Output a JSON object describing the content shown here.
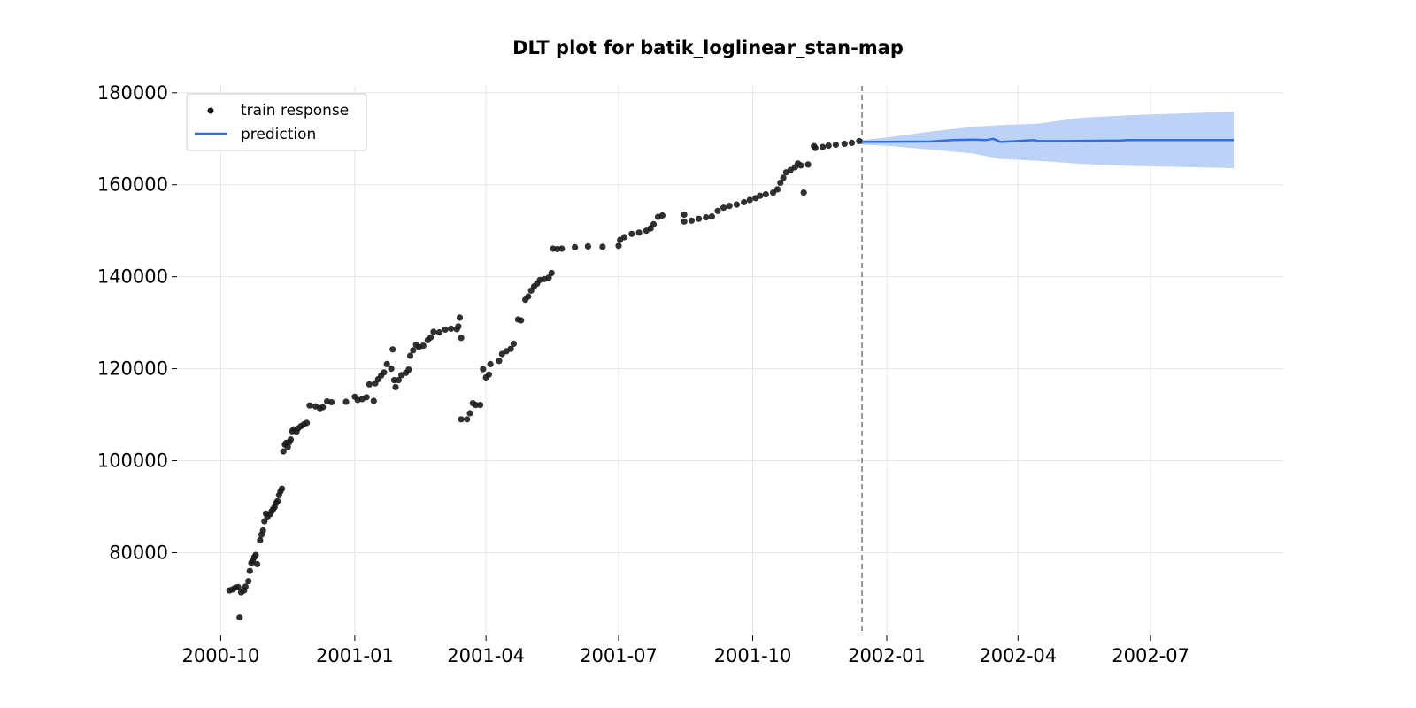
{
  "chart_data": {
    "type": "scatter",
    "title": "DLT plot for batik_loglinear_stan-map",
    "xlabel": "",
    "ylabel": "",
    "x_axis": {
      "type": "date",
      "range": [
        "2000-09-01",
        "2002-09-30"
      ],
      "ticks": [
        "2000-10-01",
        "2001-01-01",
        "2001-04-01",
        "2001-07-01",
        "2001-10-01",
        "2002-01-01",
        "2002-04-01",
        "2002-07-01"
      ],
      "tick_labels": [
        "2000-10",
        "2001-01",
        "2001-04",
        "2001-07",
        "2001-10",
        "2002-01",
        "2002-04",
        "2002-07"
      ]
    },
    "y_axis": {
      "range": [
        62000,
        181500
      ],
      "ticks": [
        80000,
        100000,
        120000,
        140000,
        160000,
        180000
      ],
      "tick_labels": [
        "80000",
        "100000",
        "120000",
        "140000",
        "160000",
        "180000"
      ]
    },
    "grid": true,
    "legend": {
      "placement": "top-left",
      "entries": [
        "train response",
        "prediction"
      ]
    },
    "split_date": "2001-12-15",
    "colors": {
      "train": "#1a1a1a",
      "prediction": "#2f6fe4",
      "band": "#bcd2f7",
      "split_line": "#777777",
      "grid": "#e6e6e6"
    },
    "series": [
      {
        "name": "train response",
        "type": "scatter",
        "points": [
          [
            "2000-10-07",
            71800
          ],
          [
            "2000-10-09",
            72000
          ],
          [
            "2000-10-11",
            72400
          ],
          [
            "2000-10-13",
            72500
          ],
          [
            "2000-10-14",
            65900
          ],
          [
            "2000-10-15",
            71400
          ],
          [
            "2000-10-17",
            71800
          ],
          [
            "2000-10-18",
            72600
          ],
          [
            "2000-10-20",
            73800
          ],
          [
            "2000-10-21",
            76000
          ],
          [
            "2000-10-22",
            77800
          ],
          [
            "2000-10-23",
            78200
          ],
          [
            "2000-10-24",
            79000
          ],
          [
            "2000-10-25",
            79500
          ],
          [
            "2000-10-26",
            77500
          ],
          [
            "2000-10-28",
            82700
          ],
          [
            "2000-10-29",
            83900
          ],
          [
            "2000-10-30",
            84800
          ],
          [
            "2000-10-31",
            86800
          ],
          [
            "2000-11-01",
            88500
          ],
          [
            "2000-11-02",
            87700
          ],
          [
            "2000-11-04",
            88400
          ],
          [
            "2000-11-05",
            89000
          ],
          [
            "2000-11-06",
            89500
          ],
          [
            "2000-11-07",
            89900
          ],
          [
            "2000-11-08",
            90800
          ],
          [
            "2000-11-09",
            91200
          ],
          [
            "2000-11-10",
            92500
          ],
          [
            "2000-11-11",
            93300
          ],
          [
            "2000-11-12",
            93900
          ],
          [
            "2000-11-13",
            102000
          ],
          [
            "2000-11-14",
            103500
          ],
          [
            "2000-11-15",
            103900
          ],
          [
            "2000-11-16",
            103000
          ],
          [
            "2000-11-17",
            104000
          ],
          [
            "2000-11-18",
            104600
          ],
          [
            "2000-11-19",
            106400
          ],
          [
            "2000-11-20",
            106800
          ],
          [
            "2000-11-22",
            106300
          ],
          [
            "2000-11-23",
            107000
          ],
          [
            "2000-11-25",
            107500
          ],
          [
            "2000-11-27",
            107900
          ],
          [
            "2000-11-29",
            108200
          ],
          [
            "2000-12-01",
            112000
          ],
          [
            "2000-12-05",
            111800
          ],
          [
            "2000-12-08",
            111400
          ],
          [
            "2000-12-10",
            111600
          ],
          [
            "2000-12-13",
            112900
          ],
          [
            "2000-12-16",
            112700
          ],
          [
            "2000-12-26",
            112800
          ],
          [
            "2001-01-01",
            113900
          ],
          [
            "2001-01-03",
            113200
          ],
          [
            "2001-01-06",
            113400
          ],
          [
            "2001-01-09",
            113800
          ],
          [
            "2001-01-11",
            116600
          ],
          [
            "2001-01-14",
            113000
          ],
          [
            "2001-01-15",
            116800
          ],
          [
            "2001-01-17",
            117700
          ],
          [
            "2001-01-19",
            118500
          ],
          [
            "2001-01-21",
            119200
          ],
          [
            "2001-01-23",
            121000
          ],
          [
            "2001-01-26",
            120000
          ],
          [
            "2001-01-27",
            124200
          ],
          [
            "2001-01-28",
            117500
          ],
          [
            "2001-01-29",
            116000
          ],
          [
            "2001-01-31",
            117500
          ],
          [
            "2001-02-02",
            118600
          ],
          [
            "2001-02-05",
            119100
          ],
          [
            "2001-02-07",
            119800
          ],
          [
            "2001-02-08",
            122800
          ],
          [
            "2001-02-10",
            124000
          ],
          [
            "2001-02-12",
            125200
          ],
          [
            "2001-02-14",
            124700
          ],
          [
            "2001-02-17",
            125000
          ],
          [
            "2001-02-20",
            126200
          ],
          [
            "2001-02-22",
            126800
          ],
          [
            "2001-02-24",
            128000
          ],
          [
            "2001-02-28",
            127900
          ],
          [
            "2001-03-04",
            128500
          ],
          [
            "2001-03-08",
            128700
          ],
          [
            "2001-03-12",
            128600
          ],
          [
            "2001-03-13",
            129200
          ],
          [
            "2001-03-14",
            131100
          ],
          [
            "2001-03-15",
            126700
          ],
          [
            "2001-03-15",
            109000
          ],
          [
            "2001-03-19",
            109000
          ],
          [
            "2001-03-21",
            110300
          ],
          [
            "2001-03-23",
            112500
          ],
          [
            "2001-03-25",
            112100
          ],
          [
            "2001-03-28",
            112100
          ],
          [
            "2001-03-30",
            119900
          ],
          [
            "2001-04-01",
            118100
          ],
          [
            "2001-04-03",
            118700
          ],
          [
            "2001-04-04",
            121000
          ],
          [
            "2001-04-10",
            121700
          ],
          [
            "2001-04-12",
            123200
          ],
          [
            "2001-04-15",
            123800
          ],
          [
            "2001-04-18",
            124300
          ],
          [
            "2001-04-20",
            125400
          ],
          [
            "2001-04-23",
            130700
          ],
          [
            "2001-04-25",
            130500
          ],
          [
            "2001-04-28",
            135000
          ],
          [
            "2001-04-30",
            135700
          ],
          [
            "2001-05-02",
            137000
          ],
          [
            "2001-05-04",
            137900
          ],
          [
            "2001-05-06",
            138500
          ],
          [
            "2001-05-08",
            139300
          ],
          [
            "2001-05-11",
            139500
          ],
          [
            "2001-05-14",
            139800
          ],
          [
            "2001-05-16",
            140800
          ],
          [
            "2001-05-17",
            146100
          ],
          [
            "2001-05-20",
            146000
          ],
          [
            "2001-05-23",
            146100
          ],
          [
            "2001-06-01",
            146400
          ],
          [
            "2001-06-10",
            146600
          ],
          [
            "2001-06-20",
            146500
          ],
          [
            "2001-07-01",
            146700
          ],
          [
            "2001-07-02",
            148000
          ],
          [
            "2001-07-05",
            148600
          ],
          [
            "2001-07-10",
            149300
          ],
          [
            "2001-07-15",
            149600
          ],
          [
            "2001-07-20",
            150000
          ],
          [
            "2001-07-23",
            150500
          ],
          [
            "2001-07-25",
            151400
          ],
          [
            "2001-07-28",
            153000
          ],
          [
            "2001-07-31",
            153300
          ],
          [
            "2001-08-15",
            153500
          ],
          [
            "2001-08-15",
            152000
          ],
          [
            "2001-08-20",
            152200
          ],
          [
            "2001-08-25",
            152600
          ],
          [
            "2001-08-30",
            152900
          ],
          [
            "2001-09-03",
            153100
          ],
          [
            "2001-09-07",
            154300
          ],
          [
            "2001-09-11",
            155000
          ],
          [
            "2001-09-15",
            155400
          ],
          [
            "2001-09-20",
            155700
          ],
          [
            "2001-09-25",
            156200
          ],
          [
            "2001-09-29",
            156700
          ],
          [
            "2001-10-03",
            157100
          ],
          [
            "2001-10-06",
            157600
          ],
          [
            "2001-10-10",
            157900
          ],
          [
            "2001-10-15",
            158300
          ],
          [
            "2001-10-18",
            159000
          ],
          [
            "2001-10-20",
            160400
          ],
          [
            "2001-10-22",
            161500
          ],
          [
            "2001-10-24",
            162700
          ],
          [
            "2001-10-27",
            163200
          ],
          [
            "2001-10-30",
            163800
          ],
          [
            "2001-11-01",
            164600
          ],
          [
            "2001-11-03",
            164200
          ],
          [
            "2001-11-05",
            158300
          ],
          [
            "2001-11-08",
            164400
          ],
          [
            "2001-11-12",
            168400
          ],
          [
            "2001-11-13",
            168000
          ],
          [
            "2001-11-18",
            168200
          ],
          [
            "2001-11-22",
            168500
          ],
          [
            "2001-11-27",
            168700
          ],
          [
            "2001-12-03",
            168900
          ],
          [
            "2001-12-08",
            169100
          ],
          [
            "2001-12-13",
            169500
          ]
        ]
      },
      {
        "name": "prediction",
        "type": "line",
        "points": [
          [
            "2001-12-15",
            169300
          ],
          [
            "2002-01-31",
            169400
          ],
          [
            "2002-02-15",
            169700
          ],
          [
            "2002-03-01",
            169800
          ],
          [
            "2002-03-10",
            169700
          ],
          [
            "2002-03-15",
            170000
          ],
          [
            "2002-03-20",
            169300
          ],
          [
            "2002-04-12",
            169700
          ],
          [
            "2002-04-15",
            169500
          ],
          [
            "2002-05-01",
            169500
          ],
          [
            "2002-06-10",
            169600
          ],
          [
            "2002-06-15",
            169700
          ],
          [
            "2002-08-27",
            169700
          ]
        ]
      },
      {
        "type": "band",
        "upper": [
          [
            "2001-12-15",
            169700
          ],
          [
            "2002-01-01",
            170300
          ],
          [
            "2002-02-01",
            171600
          ],
          [
            "2002-03-01",
            172600
          ],
          [
            "2002-03-20",
            173000
          ],
          [
            "2002-04-15",
            173300
          ],
          [
            "2002-05-15",
            174600
          ],
          [
            "2002-06-15",
            175100
          ],
          [
            "2002-08-27",
            175900
          ]
        ],
        "lower": [
          [
            "2001-12-15",
            168700
          ],
          [
            "2002-01-01",
            168500
          ],
          [
            "2002-02-01",
            167600
          ],
          [
            "2002-03-01",
            166800
          ],
          [
            "2002-03-20",
            165600
          ],
          [
            "2002-04-15",
            165200
          ],
          [
            "2002-05-15",
            164500
          ],
          [
            "2002-06-15",
            164100
          ],
          [
            "2002-08-27",
            163600
          ]
        ]
      }
    ]
  }
}
